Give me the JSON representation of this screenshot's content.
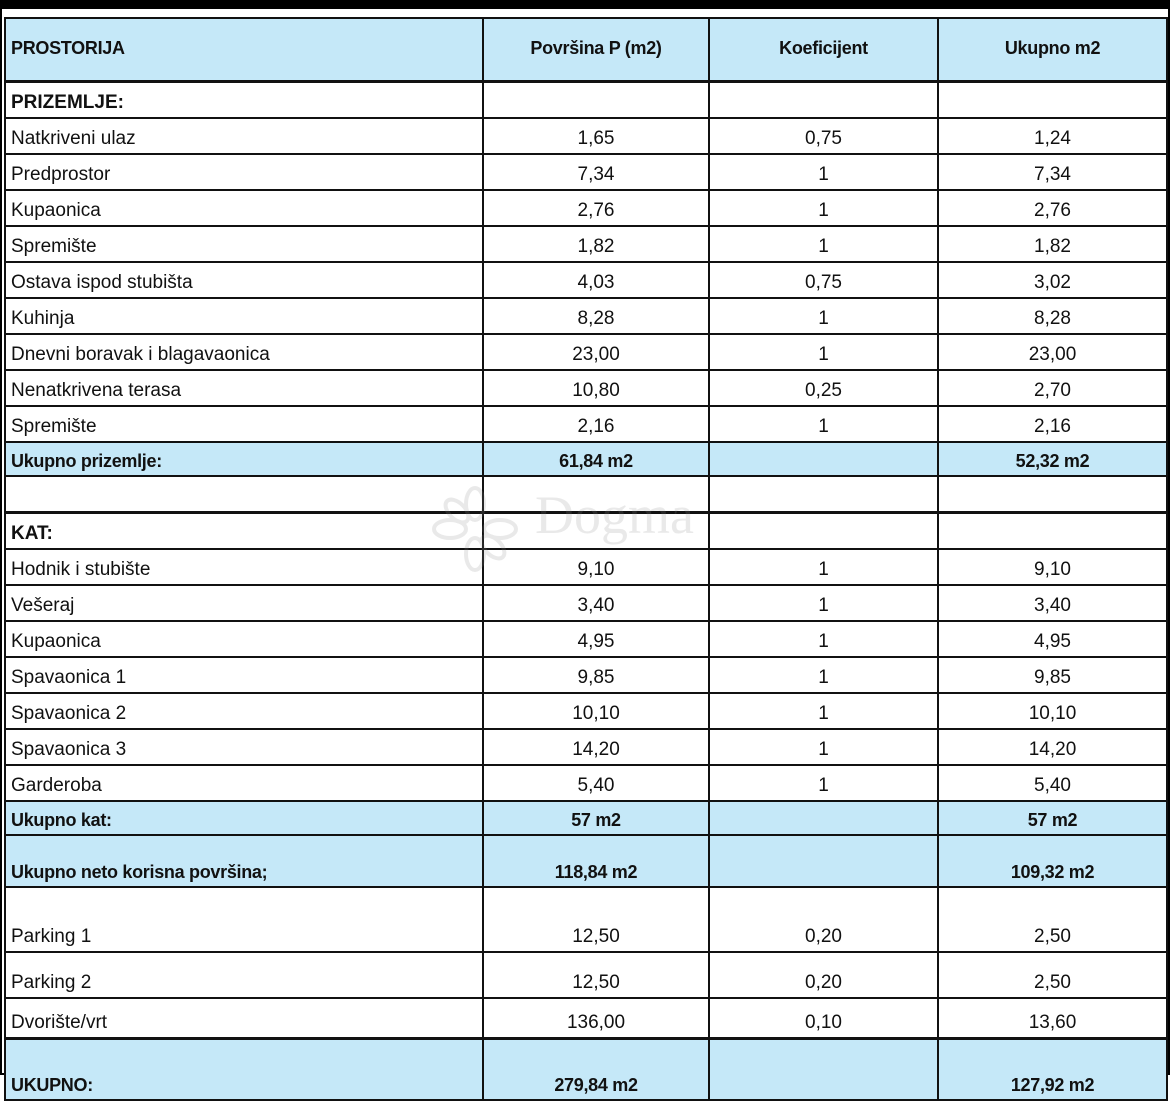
{
  "table": {
    "headers": [
      "PROSTORIJA",
      "Površina P (m2)",
      "Koeficijent",
      "Ukupno m2"
    ],
    "sections": {
      "prizemlje": {
        "label": "PRIZEMLJE:",
        "rows": [
          [
            "Natkriveni ulaz",
            "1,65",
            "0,75",
            "1,24"
          ],
          [
            "Predprostor",
            "7,34",
            "1",
            "7,34"
          ],
          [
            "Kupaonica",
            "2,76",
            "1",
            "2,76"
          ],
          [
            "Spremište",
            "1,82",
            "1",
            "1,82"
          ],
          [
            "Ostava ispod stubišta",
            "4,03",
            "0,75",
            "3,02"
          ],
          [
            "Kuhinja",
            "8,28",
            "1",
            "8,28"
          ],
          [
            "Dnevni boravak i blagavaonica",
            "23,00",
            "1",
            "23,00"
          ],
          [
            "Nenatkrivena terasa",
            "10,80",
            "0,25",
            "2,70"
          ],
          [
            "Spremište",
            "2,16",
            "1",
            "2,16"
          ]
        ],
        "total": [
          "Ukupno prizemlje:",
          "61,84 m2",
          "",
          "52,32 m2"
        ]
      },
      "kat": {
        "label": "KAT:",
        "rows": [
          [
            "Hodnik i stubište",
            "9,10",
            "1",
            "9,10"
          ],
          [
            "Vešeraj",
            "3,40",
            "1",
            "3,40"
          ],
          [
            "Kupaonica",
            "4,95",
            "1",
            "4,95"
          ],
          [
            "Spavaonica 1",
            "9,85",
            "1",
            "9,85"
          ],
          [
            "Spavaonica 2",
            "10,10",
            "1",
            "10,10"
          ],
          [
            "Spavaonica 3",
            "14,20",
            "1",
            "14,20"
          ],
          [
            "Garderoba",
            "5,40",
            "1",
            "5,40"
          ]
        ],
        "total": [
          "Ukupno kat:",
          "57 m2",
          "",
          "57 m2"
        ]
      }
    },
    "neto_total": [
      "Ukupno neto korisna površina;",
      "118,84 m2",
      "",
      "109,32 m2"
    ],
    "extra_rows": [
      [
        "Parking 1",
        "12,50",
        "0,20",
        "2,50"
      ],
      [
        "Parking 2",
        "12,50",
        "0,20",
        "2,50"
      ],
      [
        "Dvorište/vrt",
        "136,00",
        "0,10",
        "13,60"
      ]
    ],
    "grand_total": [
      "UKUPNO:",
      "279,84 m2",
      "",
      "127,92 m2"
    ]
  },
  "watermark": {
    "text": "Dogma"
  },
  "colors": {
    "header_bg": "#c5e8f8",
    "border": "#111111"
  }
}
